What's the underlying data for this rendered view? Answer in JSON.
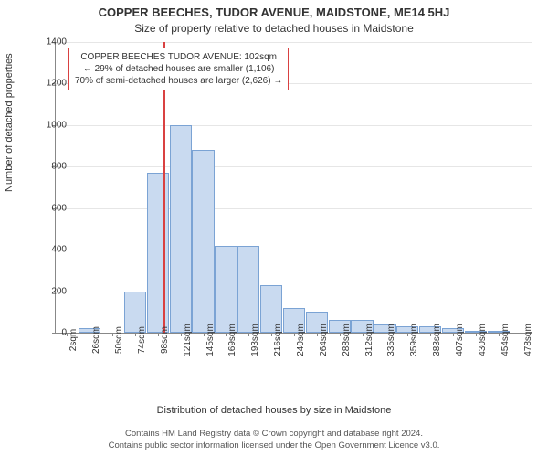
{
  "titles": {
    "line1": "COPPER BEECHES, TUDOR AVENUE, MAIDSTONE, ME14 5HJ",
    "line2": "Size of property relative to detached houses in Maidstone"
  },
  "axes": {
    "ylabel": "Number of detached properties",
    "xlabel": "Distribution of detached houses by size in Maidstone",
    "ylim": [
      0,
      1400
    ],
    "ytick_step": 200,
    "yticks": [
      0,
      200,
      400,
      600,
      800,
      1000,
      1200,
      1400
    ],
    "xticks": [
      "2sqm",
      "26sqm",
      "50sqm",
      "74sqm",
      "98sqm",
      "121sqm",
      "145sqm",
      "169sqm",
      "193sqm",
      "216sqm",
      "240sqm",
      "264sqm",
      "288sqm",
      "312sqm",
      "335sqm",
      "359sqm",
      "383sqm",
      "407sqm",
      "430sqm",
      "454sqm",
      "478sqm"
    ]
  },
  "histogram": {
    "type": "bar",
    "bar_color": "#c9daf0",
    "bar_border": "#7ba3d4",
    "values": [
      0,
      20,
      0,
      200,
      770,
      1000,
      880,
      420,
      420,
      230,
      120,
      100,
      60,
      60,
      40,
      30,
      30,
      20,
      10,
      5,
      0
    ],
    "bar_width_ratio": 0.98
  },
  "marker": {
    "color": "#d94141",
    "position_index": 4.25
  },
  "annotation": {
    "line1": "COPPER BEECHES TUDOR AVENUE: 102sqm",
    "line2": "← 29% of detached houses are smaller (1,106)",
    "line3": "70% of semi-detached houses are larger (2,626) →",
    "border_color": "#d94141"
  },
  "footer": {
    "line1": "Contains HM Land Registry data © Crown copyright and database right 2024.",
    "line2": "Contains public sector information licensed under the Open Government Licence v3.0."
  },
  "styling": {
    "background_color": "#ffffff",
    "grid_color": "#e6e6e6",
    "axis_color": "#888888",
    "title_fontsize": 13,
    "subtitle_fontsize": 12,
    "label_fontsize": 11,
    "tick_fontsize": 10,
    "footer_fontsize": 9.5
  }
}
